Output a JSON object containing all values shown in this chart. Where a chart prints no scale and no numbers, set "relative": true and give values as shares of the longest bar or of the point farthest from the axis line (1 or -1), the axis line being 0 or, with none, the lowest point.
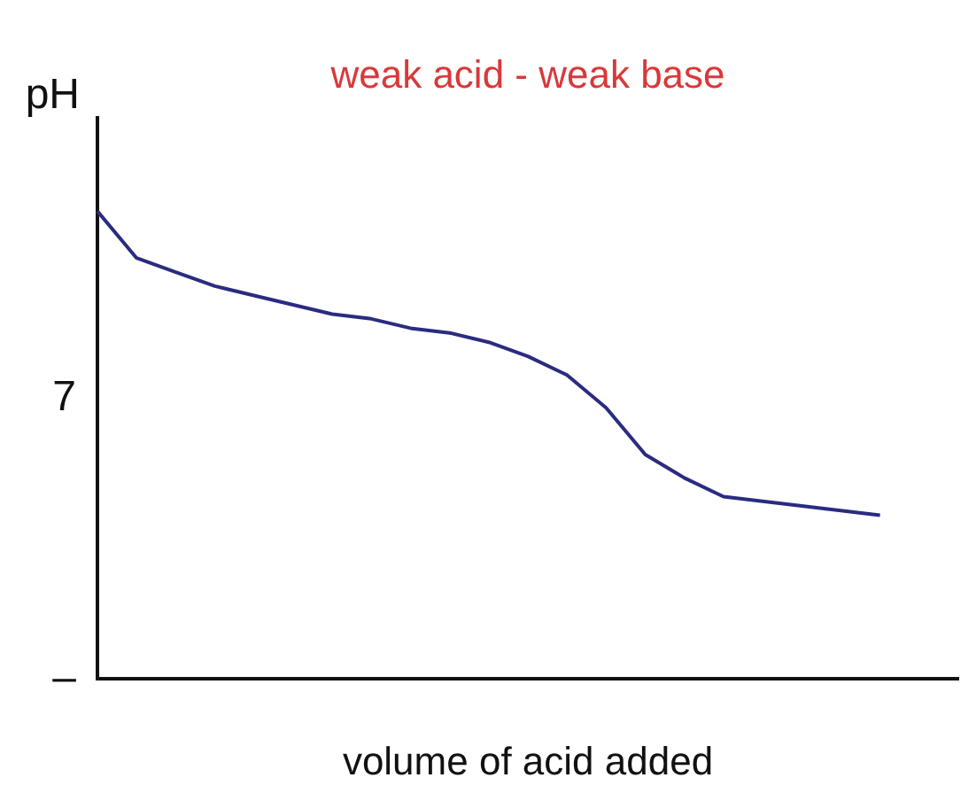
{
  "chart_data": {
    "type": "line",
    "title": "weak acid - weak base",
    "xlabel": "volume of acid added",
    "ylabel": "pH",
    "relative": true,
    "categories": [
      null,
      null,
      null,
      null,
      null,
      null,
      null,
      null,
      null,
      null,
      null,
      null,
      null,
      null,
      null,
      null,
      null,
      null,
      null,
      null,
      null,
      null,
      null
    ],
    "series": [
      {
        "color": "#2b2b80",
        "values": [
          1,
          0.9,
          0.87,
          0.84,
          0.82,
          0.8,
          0.78,
          0.77,
          0.75,
          0.74,
          0.72,
          0.69,
          0.65,
          0.58,
          0.48,
          0.43,
          0.39,
          0.38,
          0.37,
          0.36,
          0.35,
          null,
          null
        ]
      }
    ],
    "annotations": [
      "7",
      "–"
    ],
    "grid": false,
    "legend": false,
    "marker": "none",
    "line_style": "solid"
  }
}
